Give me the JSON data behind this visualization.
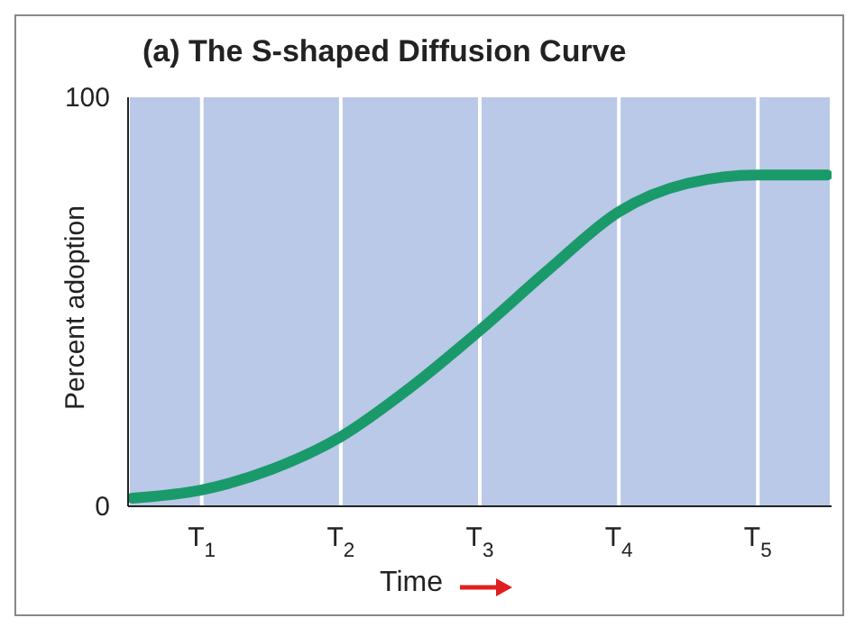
{
  "chart_data": {
    "type": "line",
    "title": "(a) The S-shaped Diffusion Curve",
    "xlabel": "Time",
    "ylabel": "Percent adoption",
    "x": [
      0.5,
      1,
      1.5,
      2,
      2.5,
      3,
      3.5,
      4,
      4.5,
      5,
      5.5
    ],
    "series": [
      {
        "color": "#1a9a6a",
        "values": [
          2,
          4,
          9,
          17,
          29,
          43,
          58,
          72,
          79,
          81,
          81
        ]
      }
    ],
    "xlim": [
      0.47,
      5.53
    ],
    "xticks": [
      {
        "value": 1,
        "label": "T$_{1}$"
      },
      {
        "value": 2,
        "label": "T$_{2}$"
      },
      {
        "value": 3,
        "label": "T$_{3}$"
      },
      {
        "value": 4,
        "label": "T$_{4}$"
      },
      {
        "value": 5,
        "label": "T$_{5}$"
      }
    ],
    "ylim": [
      0,
      100
    ],
    "yticks": [
      0,
      100
    ],
    "grid": "x",
    "marker": "none",
    "line_style": "solid"
  }
}
